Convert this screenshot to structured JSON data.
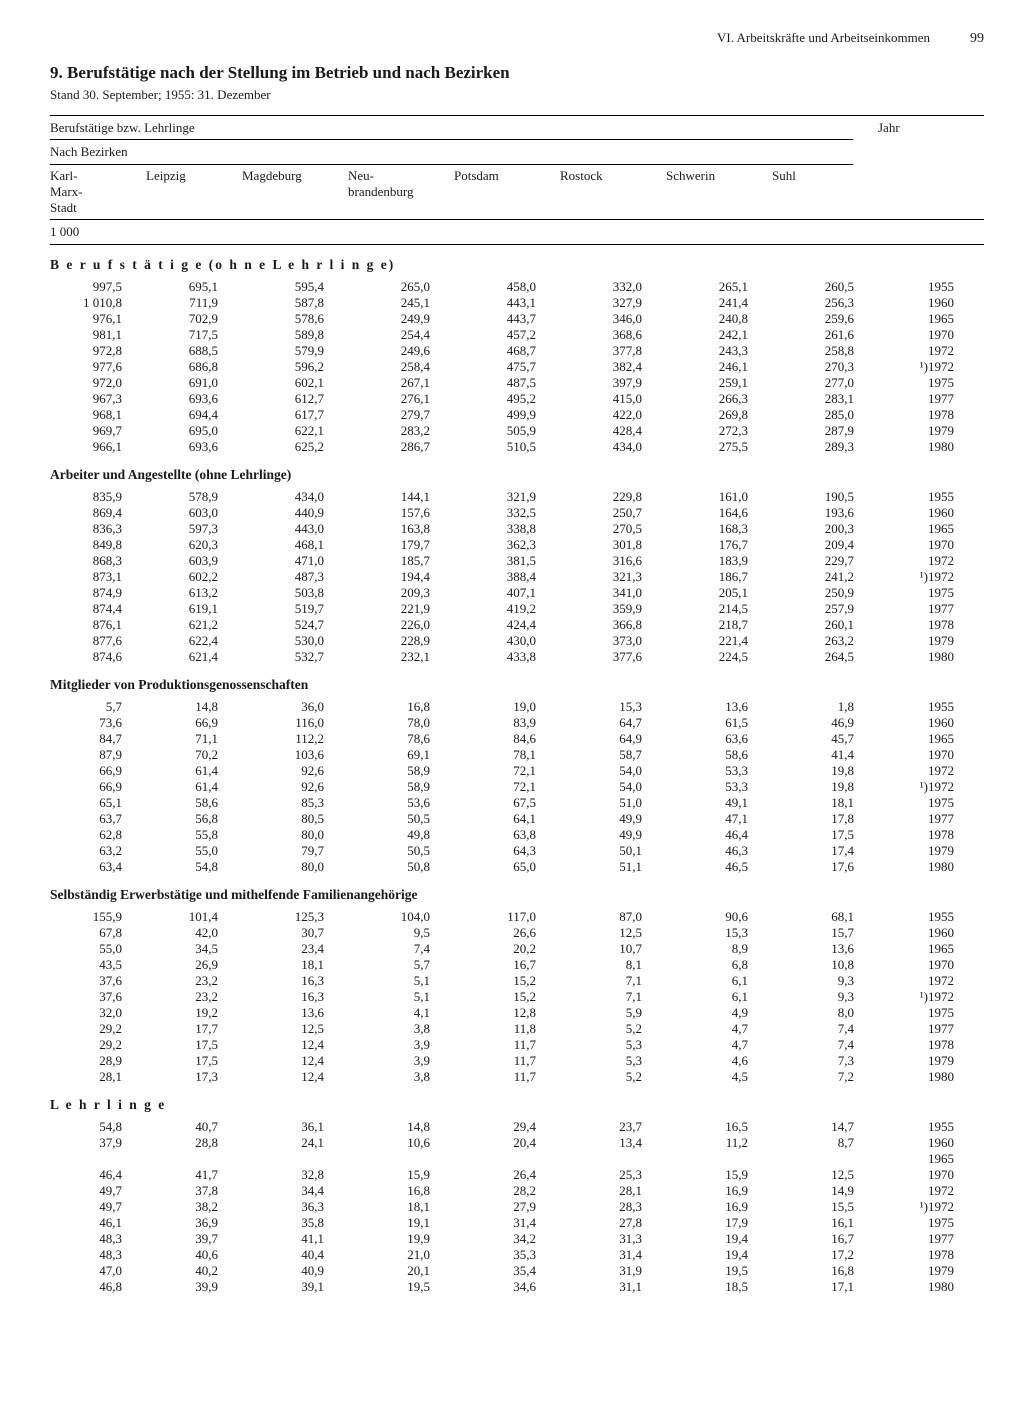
{
  "page": {
    "running_head": "VI. Arbeitskräfte und Arbeitseinkommen",
    "page_number": "99",
    "title": "9. Berufstätige nach der Stellung im Betrieb und nach Bezirken",
    "subtitle": "Stand 30. September; 1955: 31. Dezember"
  },
  "head": {
    "line1": "Berufstätige bzw. Lehrlinge",
    "jahr": "Jahr",
    "line2": "Nach Bezirken",
    "cols": [
      "Karl-Marx-Stadt",
      "Leipzig",
      "Magdeburg",
      "Neu-brandenburg",
      "Potsdam",
      "Rostock",
      "Schwerin",
      "Suhl"
    ],
    "unit": "1 000"
  },
  "sections": [
    {
      "label": "B e r u f s t ä t i g e  (o h n e  L e h r l i n g e)",
      "spaced": true,
      "rows": [
        {
          "v": [
            "997,5",
            "695,1",
            "595,4",
            "265,0",
            "458,0",
            "332,0",
            "265,1",
            "260,5"
          ],
          "y": "1955"
        },
        {
          "v": [
            "1 010,8",
            "711,9",
            "587,8",
            "245,1",
            "443,1",
            "327,9",
            "241,4",
            "256,3"
          ],
          "y": "1960"
        },
        {
          "v": [
            "976,1",
            "702,9",
            "578,6",
            "249,9",
            "443,7",
            "346,0",
            "240,8",
            "259,6"
          ],
          "y": "1965"
        },
        {
          "v": [
            "981,1",
            "717,5",
            "589,8",
            "254,4",
            "457,2",
            "368,6",
            "242,1",
            "261,6"
          ],
          "y": "1970"
        },
        {
          "v": [
            "972,8",
            "688,5",
            "579,9",
            "249,6",
            "468,7",
            "377,8",
            "243,3",
            "258,8"
          ],
          "y": "1972"
        },
        {
          "v": [
            "977,6",
            "686,8",
            "596,2",
            "258,4",
            "475,7",
            "382,4",
            "246,1",
            "270,3"
          ],
          "y": "¹)1972"
        },
        {
          "v": [
            "972,0",
            "691,0",
            "602,1",
            "267,1",
            "487,5",
            "397,9",
            "259,1",
            "277,0"
          ],
          "y": "1975"
        },
        {
          "v": [
            "967,3",
            "693,6",
            "612,7",
            "276,1",
            "495,2",
            "415,0",
            "266,3",
            "283,1"
          ],
          "y": "1977"
        },
        {
          "v": [
            "968,1",
            "694,4",
            "617,7",
            "279,7",
            "499,9",
            "422,0",
            "269,8",
            "285,0"
          ],
          "y": "1978"
        },
        {
          "v": [
            "969,7",
            "695,0",
            "622,1",
            "283,2",
            "505,9",
            "428,4",
            "272,3",
            "287,9"
          ],
          "y": "1979"
        },
        {
          "v": [
            "966,1",
            "693,6",
            "625,2",
            "286,7",
            "510,5",
            "434,0",
            "275,5",
            "289,3"
          ],
          "y": "1980"
        }
      ]
    },
    {
      "label": "Arbeiter und Angestellte (ohne Lehrlinge)",
      "rows": [
        {
          "v": [
            "835,9",
            "578,9",
            "434,0",
            "144,1",
            "321,9",
            "229,8",
            "161,0",
            "190,5"
          ],
          "y": "1955"
        },
        {
          "v": [
            "869,4",
            "603,0",
            "440,9",
            "157,6",
            "332,5",
            "250,7",
            "164,6",
            "193,6"
          ],
          "y": "1960"
        },
        {
          "v": [
            "836,3",
            "597,3",
            "443,0",
            "163,8",
            "338,8",
            "270,5",
            "168,3",
            "200,3"
          ],
          "y": "1965"
        },
        {
          "v": [
            "849,8",
            "620,3",
            "468,1",
            "179,7",
            "362,3",
            "301,8",
            "176,7",
            "209,4"
          ],
          "y": "1970"
        },
        {
          "v": [
            "868,3",
            "603,9",
            "471,0",
            "185,7",
            "381,5",
            "316,6",
            "183,9",
            "229,7"
          ],
          "y": "1972"
        },
        {
          "v": [
            "873,1",
            "602,2",
            "487,3",
            "194,4",
            "388,4",
            "321,3",
            "186,7",
            "241,2"
          ],
          "y": "¹)1972"
        },
        {
          "v": [
            "874,9",
            "613,2",
            "503,8",
            "209,3",
            "407,1",
            "341,0",
            "205,1",
            "250,9"
          ],
          "y": "1975"
        },
        {
          "v": [
            "874,4",
            "619,1",
            "519,7",
            "221,9",
            "419,2",
            "359,9",
            "214,5",
            "257,9"
          ],
          "y": "1977"
        },
        {
          "v": [
            "876,1",
            "621,2",
            "524,7",
            "226,0",
            "424,4",
            "366,8",
            "218,7",
            "260,1"
          ],
          "y": "1978"
        },
        {
          "v": [
            "877,6",
            "622,4",
            "530,0",
            "228,9",
            "430,0",
            "373,0",
            "221,4",
            "263,2"
          ],
          "y": "1979"
        },
        {
          "v": [
            "874,6",
            "621,4",
            "532,7",
            "232,1",
            "433,8",
            "377,6",
            "224,5",
            "264,5"
          ],
          "y": "1980"
        }
      ]
    },
    {
      "label": "Mitglieder von Produktionsgenossenschaften",
      "rows": [
        {
          "v": [
            "5,7",
            "14,8",
            "36,0",
            "16,8",
            "19,0",
            "15,3",
            "13,6",
            "1,8"
          ],
          "y": "1955"
        },
        {
          "v": [
            "73,6",
            "66,9",
            "116,0",
            "78,0",
            "83,9",
            "64,7",
            "61,5",
            "46,9"
          ],
          "y": "1960"
        },
        {
          "v": [
            "84,7",
            "71,1",
            "112,2",
            "78,6",
            "84,6",
            "64,9",
            "63,6",
            "45,7"
          ],
          "y": "1965"
        },
        {
          "v": [
            "87,9",
            "70,2",
            "103,6",
            "69,1",
            "78,1",
            "58,7",
            "58,6",
            "41,4"
          ],
          "y": "1970"
        },
        {
          "v": [
            "66,9",
            "61,4",
            "92,6",
            "58,9",
            "72,1",
            "54,0",
            "53,3",
            "19,8"
          ],
          "y": "1972"
        },
        {
          "v": [
            "66,9",
            "61,4",
            "92,6",
            "58,9",
            "72,1",
            "54,0",
            "53,3",
            "19,8"
          ],
          "y": "¹)1972"
        },
        {
          "v": [
            "65,1",
            "58,6",
            "85,3",
            "53,6",
            "67,5",
            "51,0",
            "49,1",
            "18,1"
          ],
          "y": "1975"
        },
        {
          "v": [
            "63,7",
            "56,8",
            "80,5",
            "50,5",
            "64,1",
            "49,9",
            "47,1",
            "17,8"
          ],
          "y": "1977"
        },
        {
          "v": [
            "62,8",
            "55,8",
            "80,0",
            "49,8",
            "63,8",
            "49,9",
            "46,4",
            "17,5"
          ],
          "y": "1978"
        },
        {
          "v": [
            "63,2",
            "55,0",
            "79,7",
            "50,5",
            "64,3",
            "50,1",
            "46,3",
            "17,4"
          ],
          "y": "1979"
        },
        {
          "v": [
            "63,4",
            "54,8",
            "80,0",
            "50,8",
            "65,0",
            "51,1",
            "46,5",
            "17,6"
          ],
          "y": "1980"
        }
      ]
    },
    {
      "label": "Selbständig Erwerbstätige und mithelfende Familienangehörige",
      "rows": [
        {
          "v": [
            "155,9",
            "101,4",
            "125,3",
            "104,0",
            "117,0",
            "87,0",
            "90,6",
            "68,1"
          ],
          "y": "1955"
        },
        {
          "v": [
            "67,8",
            "42,0",
            "30,7",
            "9,5",
            "26,6",
            "12,5",
            "15,3",
            "15,7"
          ],
          "y": "1960"
        },
        {
          "v": [
            "55,0",
            "34,5",
            "23,4",
            "7,4",
            "20,2",
            "10,7",
            "8,9",
            "13,6"
          ],
          "y": "1965"
        },
        {
          "v": [
            "43,5",
            "26,9",
            "18,1",
            "5,7",
            "16,7",
            "8,1",
            "6,8",
            "10,8"
          ],
          "y": "1970"
        },
        {
          "v": [
            "37,6",
            "23,2",
            "16,3",
            "5,1",
            "15,2",
            "7,1",
            "6,1",
            "9,3"
          ],
          "y": "1972"
        },
        {
          "v": [
            "37,6",
            "23,2",
            "16,3",
            "5,1",
            "15,2",
            "7,1",
            "6,1",
            "9,3"
          ],
          "y": "¹)1972"
        },
        {
          "v": [
            "32,0",
            "19,2",
            "13,6",
            "4,1",
            "12,8",
            "5,9",
            "4,9",
            "8,0"
          ],
          "y": "1975"
        },
        {
          "v": [
            "29,2",
            "17,7",
            "12,5",
            "3,8",
            "11,8",
            "5,2",
            "4,7",
            "7,4"
          ],
          "y": "1977"
        },
        {
          "v": [
            "29,2",
            "17,5",
            "12,4",
            "3,9",
            "11,7",
            "5,3",
            "4,7",
            "7,4"
          ],
          "y": "1978"
        },
        {
          "v": [
            "28,9",
            "17,5",
            "12,4",
            "3,9",
            "11,7",
            "5,3",
            "4,6",
            "7,3"
          ],
          "y": "1979"
        },
        {
          "v": [
            "28,1",
            "17,3",
            "12,4",
            "3,8",
            "11,7",
            "5,2",
            "4,5",
            "7,2"
          ],
          "y": "1980"
        }
      ]
    },
    {
      "label": "L e h r l i n g e",
      "spaced": true,
      "rows": [
        {
          "v": [
            "54,8",
            "40,7",
            "36,1",
            "14,8",
            "29,4",
            "23,7",
            "16,5",
            "14,7"
          ],
          "y": "1955"
        },
        {
          "v": [
            "37,9",
            "28,8",
            "24,1",
            "10,6",
            "20,4",
            "13,4",
            "11,2",
            "8,7"
          ],
          "y": "1960"
        },
        {
          "v": [
            "",
            "",
            "",
            "",
            "",
            "",
            "",
            ""
          ],
          "y": "1965"
        },
        {
          "v": [
            "46,4",
            "41,7",
            "32,8",
            "15,9",
            "26,4",
            "25,3",
            "15,9",
            "12,5"
          ],
          "y": "1970"
        },
        {
          "v": [
            "49,7",
            "37,8",
            "34,4",
            "16,8",
            "28,2",
            "28,1",
            "16,9",
            "14,9"
          ],
          "y": "1972"
        },
        {
          "v": [
            "49,7",
            "38,2",
            "36,3",
            "18,1",
            "27,9",
            "28,3",
            "16,9",
            "15,5"
          ],
          "y": "¹)1972"
        },
        {
          "v": [
            "46,1",
            "36,9",
            "35,8",
            "19,1",
            "31,4",
            "27,8",
            "17,9",
            "16,1"
          ],
          "y": "1975"
        },
        {
          "v": [
            "48,3",
            "39,7",
            "41,1",
            "19,9",
            "34,2",
            "31,3",
            "19,4",
            "16,7"
          ],
          "y": "1977"
        },
        {
          "v": [
            "48,3",
            "40,6",
            "40,4",
            "21,0",
            "35,3",
            "31,4",
            "19,4",
            "17,2"
          ],
          "y": "1978"
        },
        {
          "v": [
            "47,0",
            "40,2",
            "40,9",
            "20,1",
            "35,4",
            "31,9",
            "19,5",
            "16,8"
          ],
          "y": "1979"
        },
        {
          "v": [
            "46,8",
            "39,9",
            "39,1",
            "19,5",
            "34,6",
            "31,1",
            "18,5",
            "17,1"
          ],
          "y": "1980"
        }
      ]
    }
  ]
}
